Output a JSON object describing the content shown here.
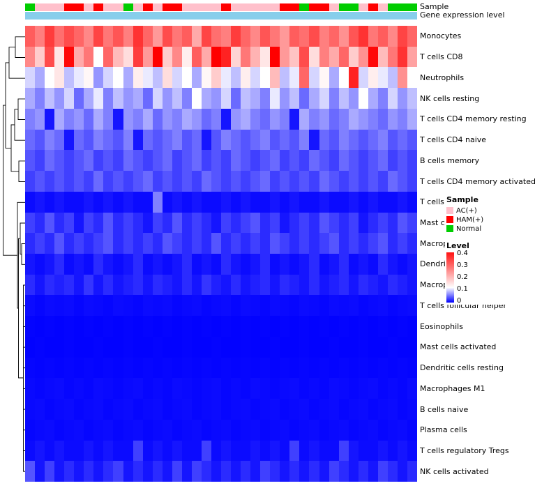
{
  "chart_data": {
    "type": "heatmap",
    "title": "",
    "columns": 40,
    "rows": [
      "Monocytes",
      "T cells CD8",
      "Neutrophils",
      "NK cells resting",
      "T cells CD4 memory resting",
      "T cells CD4 naive",
      "B cells memory",
      "T cells CD4 memory activated",
      "T cells gamma delta",
      "Mast cells resting",
      "Macrophages M0",
      "Dendritic cells activated",
      "Macrophages M2",
      "T cells follicular helper",
      "Eosinophils",
      "Mast cells activated",
      "Dendritic cells resting",
      "Macrophages M1",
      "B cells naive",
      "Plasma cells",
      "T cells regulatory Tregs",
      "NK cells activated"
    ],
    "values": [
      [
        0.31,
        0.27,
        0.35,
        0.29,
        0.33,
        0.3,
        0.26,
        0.34,
        0.28,
        0.32,
        0.27,
        0.36,
        0.3,
        0.24,
        0.33,
        0.28,
        0.31,
        0.22,
        0.34,
        0.29,
        0.27,
        0.35,
        0.3,
        0.26,
        0.32,
        0.28,
        0.24,
        0.31,
        0.29,
        0.33,
        0.27,
        0.3,
        0.25,
        0.32,
        0.36,
        0.28,
        0.31,
        0.26,
        0.34,
        0.3
      ],
      [
        0.26,
        0.18,
        0.33,
        0.15,
        0.41,
        0.22,
        0.28,
        0.12,
        0.3,
        0.2,
        0.16,
        0.35,
        0.24,
        0.42,
        0.18,
        0.26,
        0.14,
        0.31,
        0.22,
        0.42,
        0.38,
        0.17,
        0.28,
        0.21,
        0.15,
        0.42,
        0.24,
        0.19,
        0.33,
        0.16,
        0.27,
        0.22,
        0.3,
        0.18,
        0.25,
        0.41,
        0.2,
        0.28,
        0.36,
        0.23
      ],
      [
        0.1,
        0.08,
        0.12,
        0.15,
        0.09,
        0.11,
        0.13,
        0.07,
        0.1,
        0.12,
        0.08,
        0.14,
        0.11,
        0.09,
        0.16,
        0.1,
        0.12,
        0.08,
        0.13,
        0.18,
        0.11,
        0.09,
        0.14,
        0.1,
        0.12,
        0.2,
        0.09,
        0.11,
        0.3,
        0.1,
        0.13,
        0.08,
        0.12,
        0.38,
        0.1,
        0.14,
        0.11,
        0.09,
        0.25,
        0.12
      ],
      [
        0.08,
        0.06,
        0.09,
        0.07,
        0.1,
        0.05,
        0.08,
        0.11,
        0.06,
        0.09,
        0.07,
        0.08,
        0.05,
        0.1,
        0.07,
        0.09,
        0.06,
        0.12,
        0.08,
        0.07,
        0.1,
        0.05,
        0.09,
        0.08,
        0.06,
        0.11,
        0.07,
        0.09,
        0.05,
        0.08,
        0.1,
        0.06,
        0.09,
        0.07,
        0.12,
        0.08,
        0.06,
        0.1,
        0.07,
        0.09
      ],
      [
        0.06,
        0.07,
        0.01,
        0.08,
        0.06,
        0.07,
        0.05,
        0.08,
        0.06,
        0.01,
        0.07,
        0.06,
        0.08,
        0.05,
        0.07,
        0.06,
        0.08,
        0.07,
        0.05,
        0.06,
        0.01,
        0.07,
        0.08,
        0.06,
        0.05,
        0.07,
        0.06,
        0.01,
        0.08,
        0.06,
        0.07,
        0.05,
        0.06,
        0.08,
        0.07,
        0.06,
        0.05,
        0.07,
        0.06,
        0.08
      ],
      [
        0.05,
        0.04,
        0.06,
        0.05,
        0.01,
        0.05,
        0.04,
        0.06,
        0.05,
        0.04,
        0.06,
        0.01,
        0.05,
        0.04,
        0.05,
        0.06,
        0.04,
        0.05,
        0.01,
        0.04,
        0.06,
        0.05,
        0.04,
        0.05,
        0.06,
        0.04,
        0.05,
        0.04,
        0.06,
        0.01,
        0.05,
        0.04,
        0.06,
        0.05,
        0.04,
        0.05,
        0.06,
        0.04,
        0.05,
        0.04
      ],
      [
        0.04,
        0.03,
        0.05,
        0.04,
        0.03,
        0.04,
        0.05,
        0.03,
        0.04,
        0.03,
        0.05,
        0.04,
        0.03,
        0.04,
        0.05,
        0.03,
        0.04,
        0.05,
        0.03,
        0.04,
        0.03,
        0.05,
        0.04,
        0.03,
        0.04,
        0.05,
        0.03,
        0.04,
        0.03,
        0.05,
        0.04,
        0.03,
        0.05,
        0.04,
        0.03,
        0.04,
        0.05,
        0.03,
        0.04,
        0.03
      ],
      [
        0.03,
        0.04,
        0.03,
        0.04,
        0.03,
        0.04,
        0.03,
        0.05,
        0.03,
        0.04,
        0.03,
        0.04,
        0.05,
        0.03,
        0.04,
        0.03,
        0.04,
        0.03,
        0.05,
        0.04,
        0.03,
        0.04,
        0.03,
        0.04,
        0.05,
        0.03,
        0.04,
        0.03,
        0.04,
        0.03,
        0.05,
        0.04,
        0.03,
        0.04,
        0.03,
        0.04,
        0.03,
        0.05,
        0.04,
        0.03
      ],
      [
        0.005,
        0.01,
        0.005,
        0.01,
        0.005,
        0.005,
        0.01,
        0.005,
        0.01,
        0.005,
        0.01,
        0.005,
        0.005,
        0.06,
        0.005,
        0.01,
        0.005,
        0.01,
        0.005,
        0.005,
        0.01,
        0.005,
        0.01,
        0.005,
        0.005,
        0.01,
        0.005,
        0.01,
        0.005,
        0.005,
        0.01,
        0.005,
        0.005,
        0.01,
        0.005,
        0.01,
        0.005,
        0.005,
        0.01,
        0.005
      ],
      [
        0.03,
        0.02,
        0.04,
        0.02,
        0.03,
        0.01,
        0.03,
        0.02,
        0.04,
        0.02,
        0.03,
        0.02,
        0.01,
        0.03,
        0.02,
        0.04,
        0.02,
        0.03,
        0.02,
        0.01,
        0.03,
        0.02,
        0.03,
        0.04,
        0.02,
        0.03,
        0.01,
        0.02,
        0.03,
        0.02,
        0.04,
        0.03,
        0.02,
        0.03,
        0.01,
        0.02,
        0.03,
        0.02,
        0.04,
        0.03
      ],
      [
        0.02,
        0.03,
        0.02,
        0.04,
        0.02,
        0.03,
        0.02,
        0.03,
        0.04,
        0.02,
        0.03,
        0.02,
        0.03,
        0.02,
        0.04,
        0.03,
        0.02,
        0.03,
        0.02,
        0.04,
        0.02,
        0.03,
        0.02,
        0.03,
        0.02,
        0.04,
        0.03,
        0.02,
        0.03,
        0.02,
        0.03,
        0.04,
        0.02,
        0.03,
        0.02,
        0.03,
        0.04,
        0.02,
        0.03,
        0.02
      ],
      [
        0.01,
        0.005,
        0.01,
        0.02,
        0.005,
        0.01,
        0.005,
        0.02,
        0.01,
        0.005,
        0.01,
        0.02,
        0.005,
        0.01,
        0.005,
        0.01,
        0.02,
        0.005,
        0.01,
        0.005,
        0.02,
        0.01,
        0.005,
        0.01,
        0.02,
        0.005,
        0.01,
        0.005,
        0.01,
        0.02,
        0.005,
        0.01,
        0.02,
        0.005,
        0.01,
        0.005,
        0.02,
        0.01,
        0.005,
        0.01
      ],
      [
        0.02,
        0.01,
        0.02,
        0.015,
        0.02,
        0.01,
        0.025,
        0.01,
        0.02,
        0.01,
        0.015,
        0.02,
        0.01,
        0.02,
        0.015,
        0.01,
        0.02,
        0.01,
        0.025,
        0.015,
        0.01,
        0.02,
        0.01,
        0.015,
        0.02,
        0.01,
        0.02,
        0.015,
        0.01,
        0.02,
        0.01,
        0.015,
        0.02,
        0.01,
        0.02,
        0.015,
        0.01,
        0.02,
        0.015,
        0.01
      ],
      [
        0.005,
        0.003,
        0.005,
        0.004,
        0.005,
        0.003,
        0.005,
        0.004,
        0.003,
        0.005,
        0.004,
        0.003,
        0.005,
        0.004,
        0.005,
        0.003,
        0.004,
        0.005,
        0.003,
        0.004,
        0.005,
        0.003,
        0.005,
        0.004,
        0.003,
        0.005,
        0.004,
        0.003,
        0.005,
        0.004,
        0.003,
        0.005,
        0.004,
        0.005,
        0.003,
        0.004,
        0.005,
        0.003,
        0.004,
        0.005
      ],
      [
        0.002,
        0.001,
        0.002,
        0.001,
        0.002,
        0.001,
        0.002,
        0.001,
        0.002,
        0.001,
        0.002,
        0.001,
        0.002,
        0.001,
        0.002,
        0.001,
        0.002,
        0.001,
        0.002,
        0.001,
        0.002,
        0.001,
        0.002,
        0.001,
        0.002,
        0.001,
        0.002,
        0.001,
        0.002,
        0.001,
        0.002,
        0.001,
        0.002,
        0.001,
        0.002,
        0.001,
        0.002,
        0.001,
        0.002,
        0.001
      ],
      [
        0.001,
        0.002,
        0.001,
        0.001,
        0.002,
        0.001,
        0.001,
        0.002,
        0.001,
        0.001,
        0.002,
        0.001,
        0.001,
        0.002,
        0.001,
        0.001,
        0.002,
        0.001,
        0.001,
        0.002,
        0.001,
        0.001,
        0.002,
        0.001,
        0.001,
        0.002,
        0.001,
        0.001,
        0.002,
        0.001,
        0.001,
        0.002,
        0.001,
        0.001,
        0.002,
        0.001,
        0.001,
        0.002,
        0.001,
        0.001
      ],
      [
        0.003,
        0.002,
        0.003,
        0.002,
        0.003,
        0.002,
        0.003,
        0.002,
        0.003,
        0.002,
        0.003,
        0.002,
        0.003,
        0.002,
        0.003,
        0.002,
        0.003,
        0.002,
        0.003,
        0.002,
        0.003,
        0.002,
        0.003,
        0.002,
        0.003,
        0.002,
        0.003,
        0.002,
        0.003,
        0.002,
        0.003,
        0.002,
        0.003,
        0.002,
        0.003,
        0.002,
        0.003,
        0.002,
        0.003,
        0.002
      ],
      [
        0.004,
        0.003,
        0.004,
        0.005,
        0.003,
        0.004,
        0.003,
        0.005,
        0.004,
        0.003,
        0.004,
        0.005,
        0.003,
        0.004,
        0.003,
        0.005,
        0.004,
        0.003,
        0.004,
        0.005,
        0.003,
        0.004,
        0.003,
        0.005,
        0.004,
        0.003,
        0.004,
        0.005,
        0.003,
        0.004,
        0.003,
        0.005,
        0.004,
        0.003,
        0.004,
        0.005,
        0.003,
        0.004,
        0.003,
        0.005
      ],
      [
        0.004,
        0.005,
        0.003,
        0.004,
        0.005,
        0.003,
        0.004,
        0.005,
        0.003,
        0.004,
        0.005,
        0.003,
        0.004,
        0.005,
        0.003,
        0.004,
        0.005,
        0.003,
        0.004,
        0.005,
        0.003,
        0.004,
        0.005,
        0.003,
        0.004,
        0.005,
        0.003,
        0.004,
        0.005,
        0.003,
        0.004,
        0.005,
        0.003,
        0.004,
        0.005,
        0.003,
        0.004,
        0.005,
        0.003,
        0.004
      ],
      [
        0.003,
        0.004,
        0.005,
        0.003,
        0.004,
        0.005,
        0.003,
        0.004,
        0.005,
        0.003,
        0.004,
        0.005,
        0.003,
        0.004,
        0.005,
        0.003,
        0.004,
        0.005,
        0.003,
        0.004,
        0.005,
        0.003,
        0.004,
        0.005,
        0.003,
        0.004,
        0.005,
        0.003,
        0.004,
        0.005,
        0.003,
        0.004,
        0.005,
        0.003,
        0.004,
        0.005,
        0.003,
        0.004,
        0.005,
        0.003
      ],
      [
        0.005,
        0.01,
        0.005,
        0.01,
        0.005,
        0.005,
        0.01,
        0.005,
        0.01,
        0.005,
        0.005,
        0.03,
        0.005,
        0.01,
        0.005,
        0.01,
        0.005,
        0.005,
        0.03,
        0.005,
        0.01,
        0.005,
        0.005,
        0.01,
        0.005,
        0.01,
        0.005,
        0.03,
        0.005,
        0.01,
        0.005,
        0.005,
        0.03,
        0.01,
        0.005,
        0.005,
        0.01,
        0.005,
        0.01,
        0.005
      ],
      [
        0.04,
        0.01,
        0.03,
        0.01,
        0.02,
        0.01,
        0.02,
        0.01,
        0.02,
        0.03,
        0.01,
        0.02,
        0.01,
        0.02,
        0.01,
        0.03,
        0.01,
        0.03,
        0.02,
        0.01,
        0.02,
        0.01,
        0.02,
        0.01,
        0.03,
        0.02,
        0.01,
        0.02,
        0.01,
        0.02,
        0.01,
        0.03,
        0.02,
        0.01,
        0.02,
        0.01,
        0.03,
        0.02,
        0.01,
        0.02
      ]
    ],
    "column_annotations": {
      "sample": {
        "label": "Sample",
        "colors": {
          "AC(+)": "#FFC0CB",
          "HAM(+)": "#FF0000",
          "Normal": "#00CD00"
        },
        "values": [
          "Normal",
          "AC(+)",
          "AC(+)",
          "AC(+)",
          "HAM(+)",
          "HAM(+)",
          "AC(+)",
          "HAM(+)",
          "AC(+)",
          "AC(+)",
          "Normal",
          "AC(+)",
          "HAM(+)",
          "AC(+)",
          "HAM(+)",
          "HAM(+)",
          "AC(+)",
          "AC(+)",
          "AC(+)",
          "AC(+)",
          "HAM(+)",
          "AC(+)",
          "AC(+)",
          "AC(+)",
          "AC(+)",
          "AC(+)",
          "HAM(+)",
          "HAM(+)",
          "Normal",
          "HAM(+)",
          "HAM(+)",
          "AC(+)",
          "Normal",
          "Normal",
          "AC(+)",
          "HAM(+)",
          "AC(+)",
          "Normal",
          "Normal",
          "Normal"
        ]
      },
      "gene_expression_level": {
        "label": "Gene expression level",
        "uniform_color": "#87CEEB"
      }
    },
    "colormap": {
      "low": "#0000FF",
      "mid": "#FFFFFF",
      "high": "#FF0000",
      "domain": [
        0,
        0.12,
        0.42
      ]
    },
    "legend": {
      "sample": {
        "title": "Sample",
        "items": [
          {
            "label": "AC(+)",
            "color": "#FFC0CB"
          },
          {
            "label": "HAM(+)",
            "color": "#FF0000"
          },
          {
            "label": "Normal",
            "color": "#00CD00"
          }
        ]
      },
      "level": {
        "title": "Level",
        "ticks": [
          "0.4",
          "0.3",
          "0.2",
          "0.1",
          "0"
        ],
        "max": 0.4,
        "min": 0
      }
    }
  }
}
